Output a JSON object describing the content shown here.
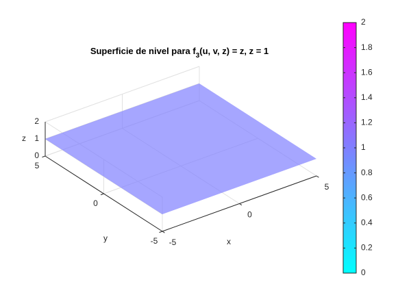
{
  "chart_data": {
    "type": "surface",
    "title": [
      "Superficie de nivel para f",
      "3",
      "(u, v, z) = z, z = 1"
    ],
    "xlabel": "x",
    "ylabel": "y",
    "zlabel": "z",
    "xlim": [
      -5,
      5
    ],
    "ylim": [
      -5,
      5
    ],
    "zlim": [
      0,
      2
    ],
    "xticks": [
      -5,
      0,
      5
    ],
    "yticks": [
      -5,
      0,
      5
    ],
    "zticks": [
      0,
      1,
      2
    ],
    "surface": {
      "z": 1,
      "face_alpha": 0.7
    },
    "colormap": [
      "#00ffff",
      "#ff00ff"
    ],
    "clim": [
      0,
      2
    ],
    "cticks": [
      0,
      0.2,
      0.4,
      0.6,
      0.8,
      1,
      1.2,
      1.4,
      1.6,
      1.8,
      2
    ],
    "grid": true
  }
}
